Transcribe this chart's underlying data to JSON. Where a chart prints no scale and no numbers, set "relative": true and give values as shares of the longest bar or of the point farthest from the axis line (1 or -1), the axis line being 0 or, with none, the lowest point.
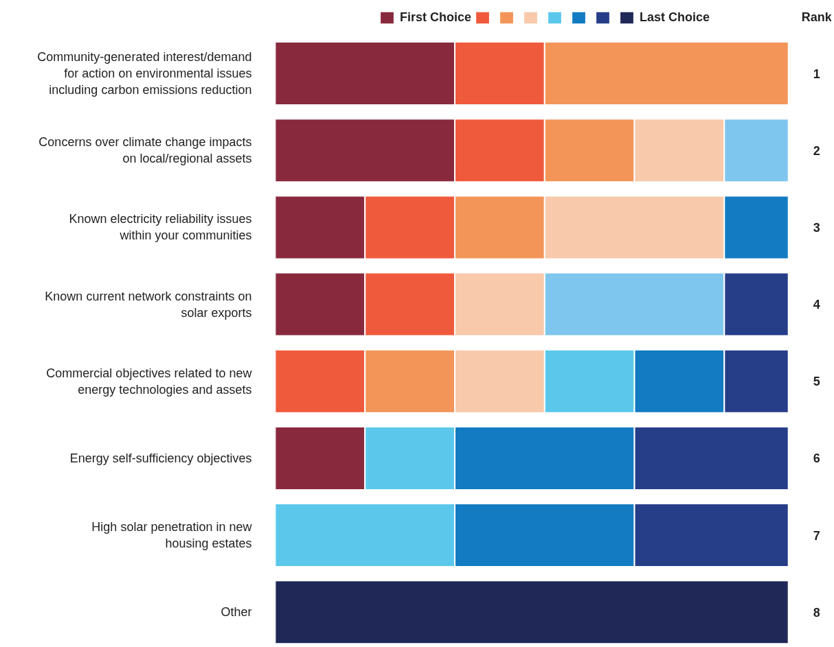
{
  "chart_data": {
    "type": "bar",
    "orientation": "horizontal",
    "stacked": true,
    "relative": true,
    "legend": "top",
    "categories": [
      "Community-generated interest/demand for action on environmental issues including carbon emissions reduction",
      "Concerns over climate change impacts on local/regional assets",
      "Known electricity reliability issues within your communities",
      "Known current network constraints on solar exports",
      "Commercial objectives related to new energy technologies and assets",
      "Energy self-sufficiency objectives",
      "High solar penetration in new housing estates",
      "Other"
    ],
    "series": [
      {
        "name": "First Choice",
        "color": "#89293e",
        "values": [
          0.35,
          0.35,
          0.175,
          0.175,
          null,
          0.175,
          null,
          null
        ]
      },
      {
        "color": "#f05a3c",
        "values": [
          0.175,
          0.175,
          0.175,
          0.175,
          0.175,
          null,
          null,
          null
        ]
      },
      {
        "color": "#f39559",
        "values": [
          0.475,
          0.175,
          0.175,
          null,
          0.175,
          null,
          null,
          null
        ]
      },
      {
        "color": "#f8c9ab",
        "values": [
          null,
          0.175,
          0.35,
          0.175,
          0.175,
          null,
          null,
          null
        ]
      },
      {
        "color": "#5bc8eb",
        "colors": [
          "#5bc8eb",
          "#7fc6ee",
          "#5bc8eb",
          "#7fc6ee",
          "#5bc8eb",
          "#5bc8eb",
          "#5bc8eb",
          "#5bc8eb"
        ],
        "values": [
          null,
          0.125,
          null,
          0.35,
          0.175,
          0.175,
          0.35,
          null
        ]
      },
      {
        "color": "#127bc2",
        "values": [
          null,
          null,
          0.125,
          null,
          0.175,
          0.35,
          0.35,
          null
        ]
      },
      {
        "color": "#263d88",
        "values": [
          null,
          null,
          null,
          0.125,
          0.125,
          0.3,
          0.3,
          null
        ]
      },
      {
        "name": "Last Choice",
        "color": "#1f2857",
        "values": [
          null,
          null,
          null,
          null,
          null,
          null,
          null,
          1.0
        ]
      }
    ],
    "annotations": [
      "Rank",
      "1",
      "2",
      "3",
      "4",
      "5",
      "6",
      "7",
      "8"
    ]
  }
}
